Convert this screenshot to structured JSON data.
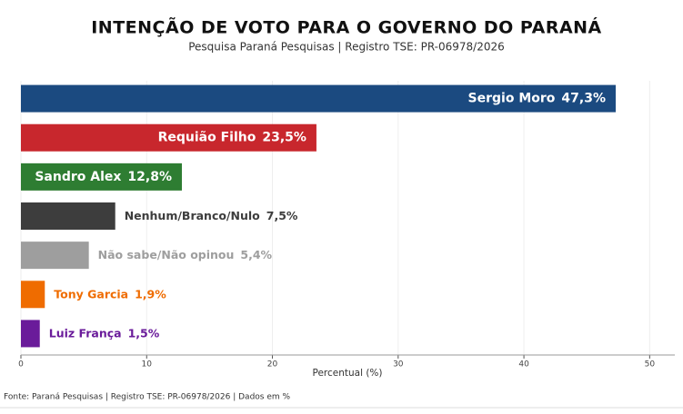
{
  "chart_data": {
    "type": "bar",
    "orientation": "horizontal",
    "title": "INTENÇÃO DE VOTO PARA O GOVERNO DO PARANÁ",
    "subtitle": "Pesquisa Paraná Pesquisas | Registro TSE: PR-06978/2026",
    "x_label": "Percentual (%)",
    "footer": "Fonte: Paraná Pesquisas | Registro TSE: PR-06978/2026 | Dados em %",
    "categories": [
      "Sergio Moro",
      "Requião Filho",
      "Sandro Alex",
      "Nenhum/Branco/Nulo",
      "Não sabe/Não opinou",
      "Tony Garcia",
      "Luiz França"
    ],
    "values": [
      47.3,
      23.5,
      12.8,
      7.5,
      5.4,
      1.9,
      1.5
    ],
    "value_labels": [
      "47,3%",
      "23,5%",
      "12,8%",
      "7,5%",
      "5,4%",
      "1,9%",
      "1,5%"
    ],
    "colors": [
      "#1b4a80",
      "#c8272d",
      "#2e7d32",
      "#3d3d3d",
      "#9e9e9e",
      "#ef6c00",
      "#6a1b9a"
    ],
    "xlim": [
      0,
      52
    ],
    "xticks": [
      0,
      10,
      20,
      30,
      40,
      50
    ],
    "grid": true
  }
}
